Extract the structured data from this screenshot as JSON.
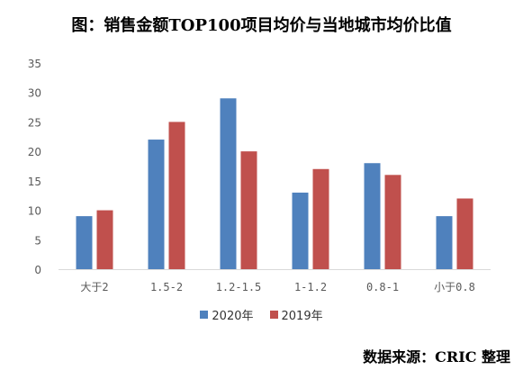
{
  "title": "图：销售金额TOP100项目均价与当地城市均价比值",
  "source": "数据来源：CRIC 整理",
  "colors": {
    "series_2020": "#4f81bd",
    "series_2019": "#c0504d",
    "axis": "#d9d9d9",
    "text": "#595959"
  },
  "chart_data": {
    "type": "bar",
    "title": "图：销售金额TOP100项目均价与当地城市均价比值",
    "xlabel": "",
    "ylabel": "",
    "categories": [
      "大于2",
      "1.5-2",
      "1.2-1.5",
      "1-1.2",
      "0.8-1",
      "小于0.8"
    ],
    "series": [
      {
        "name": "2020年",
        "values": [
          9,
          22,
          29,
          13,
          18,
          9
        ]
      },
      {
        "name": "2019年",
        "values": [
          10,
          25,
          20,
          17,
          16,
          12
        ]
      }
    ],
    "ylim": [
      0,
      35
    ],
    "yticks": [
      0,
      5,
      10,
      15,
      20,
      25,
      30,
      35
    ],
    "grid": false,
    "legend_position": "bottom"
  }
}
